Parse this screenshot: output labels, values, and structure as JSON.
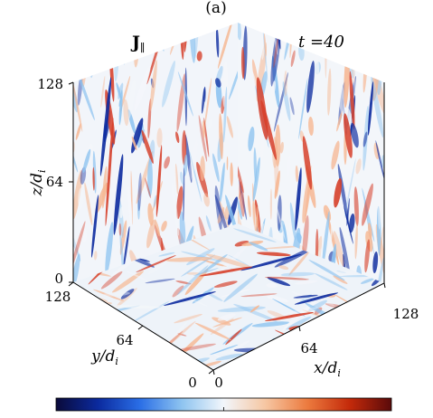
{
  "figure": {
    "panel_label": "(a)",
    "field_label": "J",
    "field_subscript": "∥",
    "time_label": "t =40",
    "axes": {
      "z": {
        "label_main": "z/",
        "label_var": "d",
        "label_sub": "i",
        "ticks": [
          "0",
          "64",
          "128"
        ]
      },
      "y": {
        "label_main": "y/",
        "label_var": "d",
        "label_sub": "i",
        "ticks": [
          "0",
          "64",
          "128"
        ]
      },
      "x": {
        "label_main": "x/",
        "label_var": "d",
        "label_sub": "i",
        "ticks": [
          "0",
          "64",
          "128"
        ]
      }
    },
    "colorbar": {
      "colormap": [
        "#0a0a3a",
        "#0b2a9e",
        "#2a6ee6",
        "#8ec4f0",
        "#f2f6fb",
        "#f6c6a2",
        "#ec7a3e",
        "#c42a0a",
        "#5a0a0a"
      ]
    },
    "palette": {
      "deep_blue": "#0b2a9e",
      "light_blue": "#8ec4f0",
      "neutral": "#f4f6fa",
      "light_red": "#f6b894",
      "red": "#d6402a"
    }
  }
}
